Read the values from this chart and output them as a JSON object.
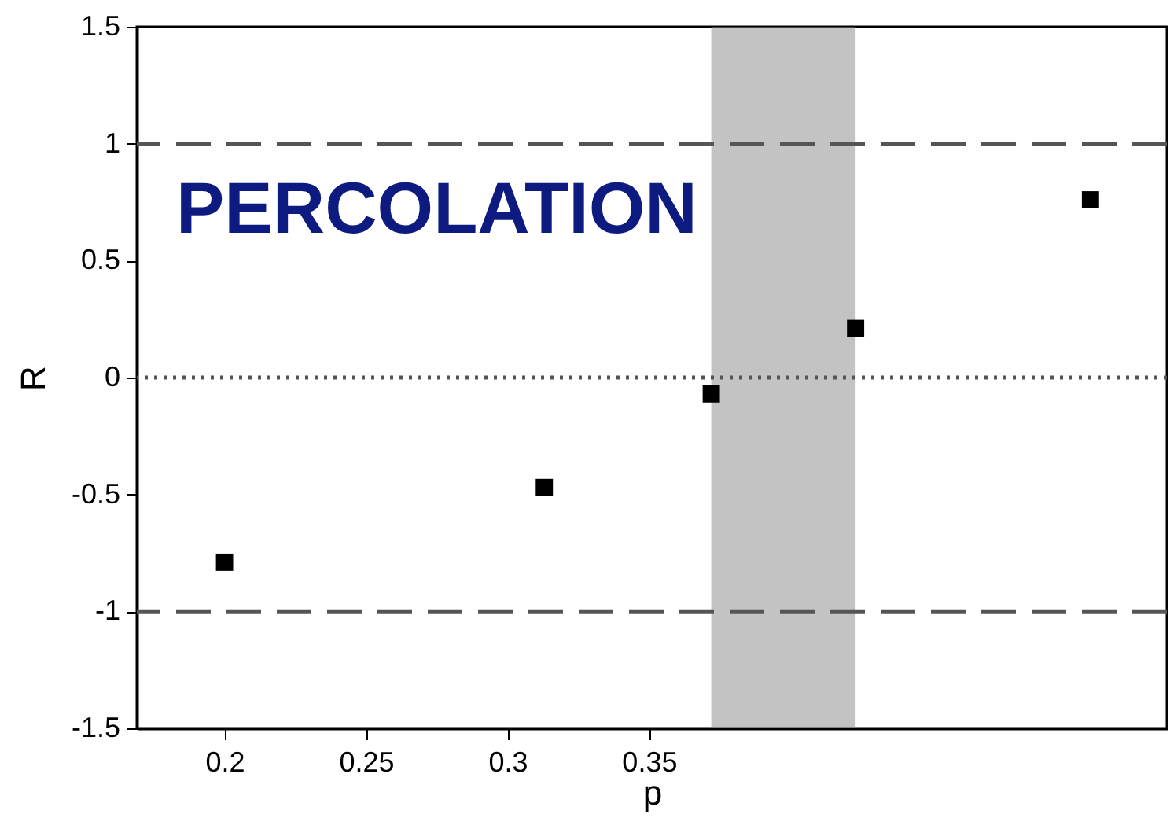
{
  "chart_data": {
    "type": "scatter",
    "xlabel": "p",
    "ylabel": "R",
    "marker": "square",
    "grid": false,
    "x": [
      0.2,
      0.313,
      0.372,
      0.423,
      0.506
    ],
    "series": [
      {
        "color": "#000000",
        "values": [
          -0.79,
          -0.47,
          -0.07,
          0.21,
          0.76
        ]
      }
    ],
    "xlim": [
      0.169,
      0.533
    ],
    "xticks": [
      0.2,
      0.25,
      0.3,
      0.35
    ],
    "ylim": [
      -1.5,
      1.5
    ],
    "yticks": [
      -1.5,
      -1,
      -0.5,
      0,
      0.5,
      1,
      1.5
    ],
    "ref_lines": [
      {
        "axis": "y",
        "value": 1,
        "line_style": "dashed",
        "color": "#555555"
      },
      {
        "axis": "y",
        "value": -1,
        "line_style": "dashed",
        "color": "#555555"
      },
      {
        "axis": "y",
        "value": 0,
        "line_style": "dotted",
        "color": "#555555"
      }
    ],
    "bands": [
      {
        "axis": "x",
        "from": 0.372,
        "to": 0.423,
        "color": "#888888"
      }
    ],
    "annotations": [
      "PERCOLATION"
    ]
  }
}
